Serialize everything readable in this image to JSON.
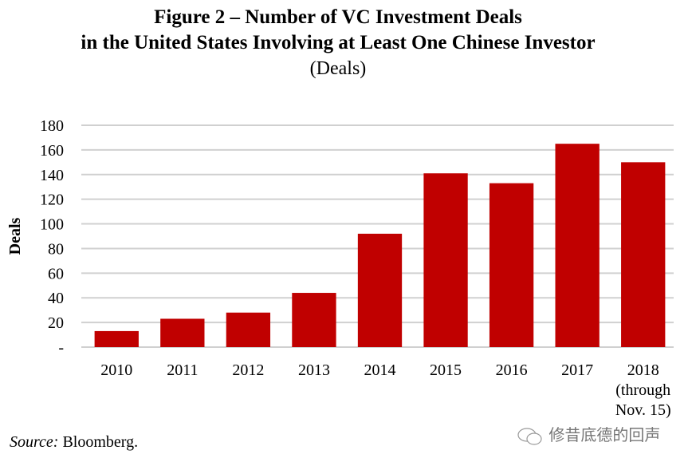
{
  "chart_data": {
    "type": "bar",
    "title": "Figure 2 – Number of VC Investment Deals",
    "title_line2": "in the United States Involving at Least One Chinese Investor",
    "subtitle": "(Deals)",
    "xlabel": "",
    "ylabel": "Deals",
    "ylim": [
      0,
      180
    ],
    "yticks": [
      0,
      20,
      40,
      60,
      80,
      100,
      120,
      140,
      160,
      180
    ],
    "ytick_labels": [
      "-",
      "20",
      "40",
      "60",
      "80",
      "100",
      "120",
      "140",
      "160",
      "180"
    ],
    "grid": true,
    "categories": [
      "2010",
      "2011",
      "2012",
      "2013",
      "2014",
      "2015",
      "2016",
      "2017",
      "2018"
    ],
    "category_label_extra": {
      "2018": [
        "(through",
        "Nov. 15)"
      ]
    },
    "values": [
      13,
      23,
      28,
      44,
      92,
      141,
      133,
      165,
      150
    ],
    "bar_color": "#C00000",
    "grid_color": "#D0D0D0"
  },
  "source": {
    "label": "Source:",
    "text": " Bloomberg."
  },
  "watermark": {
    "text": "修昔底德的回声",
    "icon": "wechat-icon"
  }
}
